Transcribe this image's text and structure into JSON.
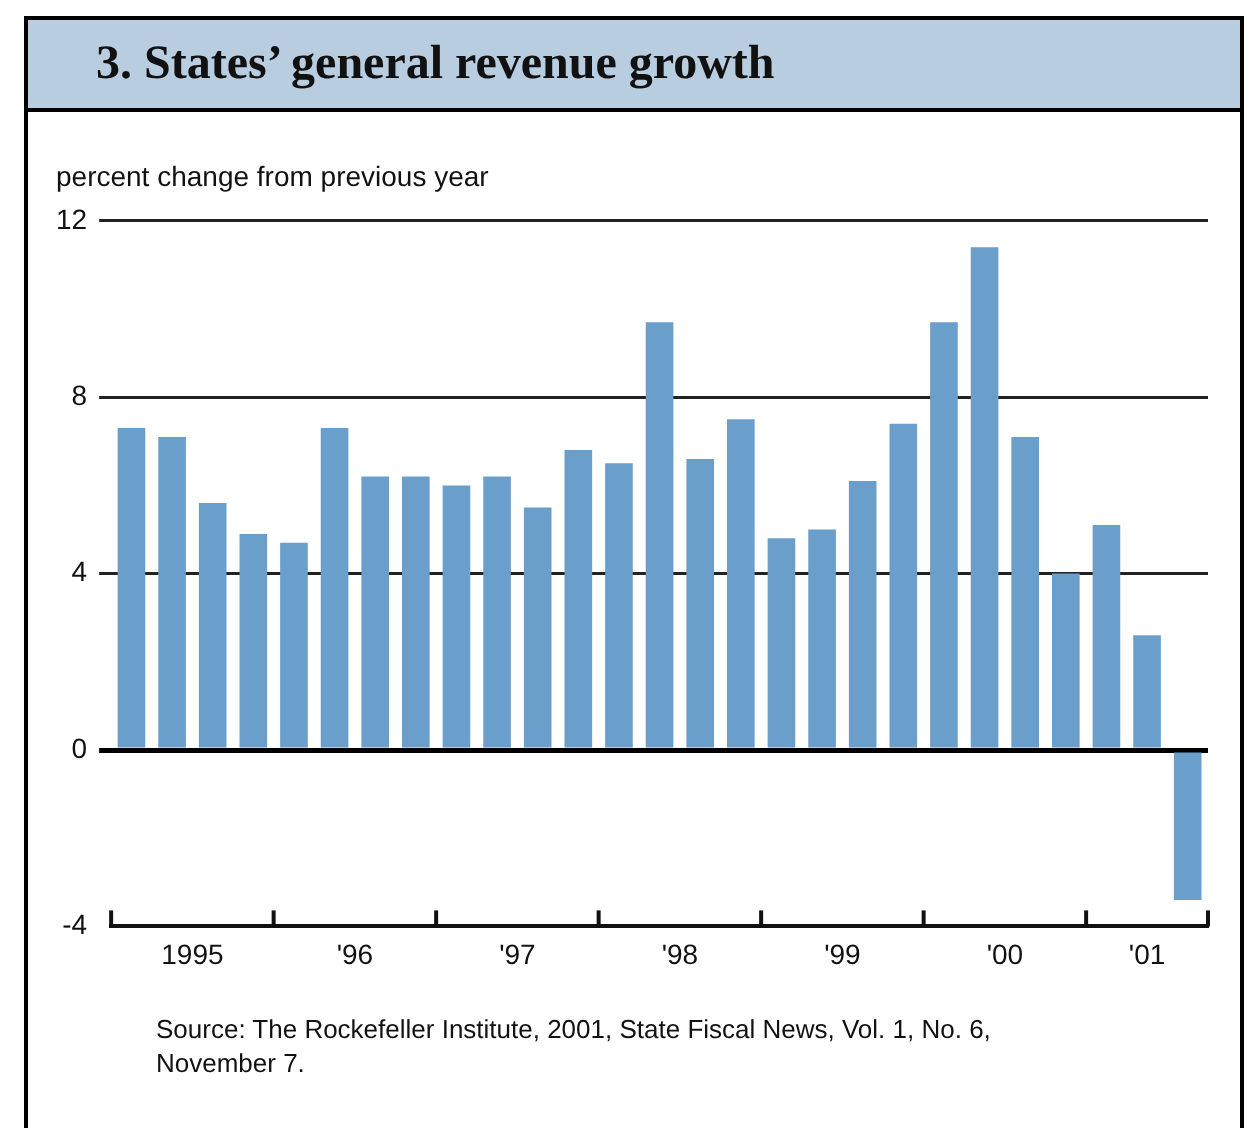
{
  "chart_data": {
    "type": "bar",
    "title": "3. States’ general revenue growth",
    "ylabel": "percent change from previous year",
    "categories": [
      null,
      "1995",
      null,
      null,
      null,
      "'96",
      null,
      null,
      null,
      "'97",
      null,
      null,
      null,
      "'98",
      null,
      null,
      null,
      "'99",
      null,
      null,
      null,
      "'00",
      null,
      null,
      null,
      "'01",
      null
    ],
    "values": [
      7.3,
      7.1,
      5.6,
      4.9,
      4.7,
      7.3,
      6.2,
      6.2,
      6.0,
      6.2,
      5.5,
      6.8,
      6.5,
      9.7,
      6.6,
      7.5,
      4.8,
      5.0,
      6.1,
      7.4,
      9.7,
      11.4,
      7.1,
      4.0,
      5.1,
      2.6,
      -3.4
    ],
    "color": "#6a9ecb",
    "ylim": [
      -4,
      12
    ],
    "yticks": [
      -4,
      0,
      4,
      8,
      12
    ],
    "grid": "y",
    "annotations": [
      "Source: The Rockefeller Institute, 2001, State Fiscal News, Vol. 1, No. 6, November 7."
    ]
  }
}
